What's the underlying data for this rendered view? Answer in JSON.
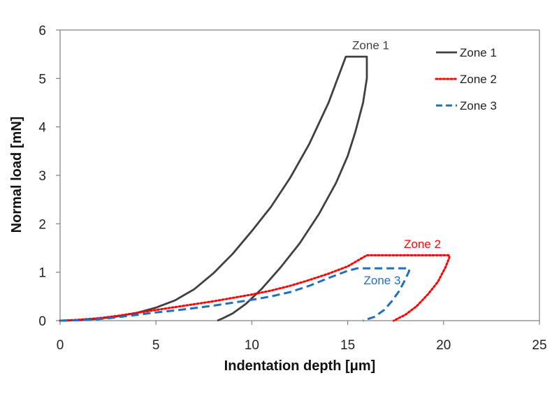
{
  "colors": {
    "zone1": "#404040",
    "zone2": "#ff0000",
    "zone3": "#1f6fbf"
  },
  "chart_data": {
    "type": "line",
    "title": "",
    "xlabel": "Indentation depth [μm]",
    "ylabel": "Normal load [mN]",
    "xlim": [
      0,
      25
    ],
    "ylim": [
      0,
      6
    ],
    "xticks": [
      0,
      5,
      10,
      15,
      20,
      25
    ],
    "yticks": [
      0,
      1,
      2,
      3,
      4,
      5,
      6
    ],
    "xtick_labels": [
      "0",
      "5",
      "10",
      "15",
      "20",
      "25"
    ],
    "ytick_labels": [
      "0",
      "1",
      "2",
      "3",
      "4",
      "5",
      "6"
    ],
    "grid": false,
    "legend": {
      "position": "top-right",
      "entries": [
        "Zone 1",
        "Zone 2",
        "Zone 3"
      ]
    },
    "annotations": [
      {
        "text": "Zone 1",
        "x": 16.2,
        "y": 5.6,
        "series": "Zone 1"
      },
      {
        "text": "Zone 2",
        "x": 18.9,
        "y": 1.5,
        "series": "Zone 2"
      },
      {
        "text": "Zone 3",
        "x": 16.8,
        "y": 0.75,
        "series": "Zone 3"
      }
    ],
    "series": [
      {
        "name": "Zone 1",
        "style": "solid",
        "x": [
          0,
          1,
          2,
          3,
          4,
          5,
          6,
          7,
          8,
          9,
          10,
          11,
          12,
          13,
          14,
          14.9,
          15.7,
          16.0,
          16.0,
          15.8,
          15.4,
          15.0,
          14.4,
          13.5,
          12.5,
          11.5,
          10.5,
          9.7,
          9.0,
          8.5,
          8.2
        ],
        "y": [
          0,
          0.01,
          0.04,
          0.09,
          0.16,
          0.27,
          0.42,
          0.65,
          0.98,
          1.38,
          1.85,
          2.35,
          2.95,
          3.65,
          4.5,
          5.45,
          5.45,
          5.45,
          5.0,
          4.5,
          3.9,
          3.4,
          2.85,
          2.2,
          1.6,
          1.1,
          0.65,
          0.35,
          0.15,
          0.05,
          0
        ]
      },
      {
        "name": "Zone 2",
        "style": "dotted",
        "x": [
          0,
          1,
          2,
          3,
          4,
          5,
          6,
          7,
          8,
          9,
          10,
          11,
          12,
          13,
          14,
          15,
          16.0,
          20.3,
          20.3,
          20.1,
          19.7,
          19.2,
          18.6,
          18.0,
          17.4
        ],
        "y": [
          0,
          0.02,
          0.05,
          0.1,
          0.16,
          0.22,
          0.28,
          0.34,
          0.4,
          0.47,
          0.54,
          0.62,
          0.72,
          0.84,
          0.97,
          1.12,
          1.35,
          1.35,
          1.3,
          1.1,
          0.8,
          0.55,
          0.3,
          0.12,
          0
        ]
      },
      {
        "name": "Zone 3",
        "style": "dashed",
        "x": [
          0,
          1,
          2,
          3,
          4,
          5,
          6,
          7,
          8,
          9,
          10,
          11,
          12,
          13,
          14,
          15.0,
          15.5,
          18.2,
          18.2,
          18.0,
          17.7,
          17.3,
          16.9,
          16.4,
          15.8
        ],
        "y": [
          0,
          0.01,
          0.03,
          0.07,
          0.12,
          0.17,
          0.21,
          0.26,
          0.31,
          0.37,
          0.43,
          0.5,
          0.59,
          0.72,
          0.88,
          1.03,
          1.08,
          1.08,
          1.02,
          0.85,
          0.62,
          0.4,
          0.22,
          0.08,
          0
        ]
      }
    ]
  }
}
